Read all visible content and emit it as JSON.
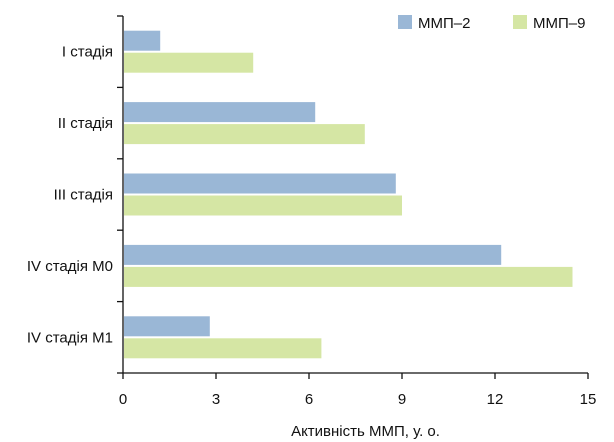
{
  "chart_data": {
    "type": "bar",
    "orientation": "horizontal",
    "categories": [
      "I стадія",
      "II стадія",
      "III стадія",
      "IV стадія M0",
      "IV стадія M1"
    ],
    "series": [
      {
        "name": "ММП–2",
        "values": [
          1.2,
          6.2,
          8.8,
          12.2,
          2.8
        ],
        "color": "#9ab7d6"
      },
      {
        "name": "ММП–9",
        "values": [
          4.2,
          7.8,
          9.0,
          14.5,
          6.4
        ],
        "color": "#d5e6a4"
      }
    ],
    "xlabel": "Активність ММП, у. о.",
    "ylabel": "",
    "xlim": [
      0,
      15
    ],
    "xticks": [
      "0",
      "3",
      "6",
      "9",
      "12",
      "15"
    ],
    "grid": false,
    "legend_position": "top-right"
  }
}
